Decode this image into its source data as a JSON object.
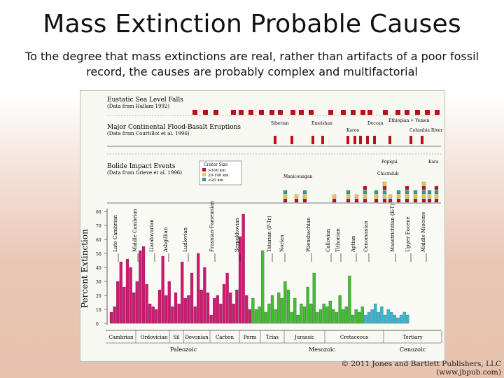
{
  "slide": {
    "title": "Mass Extinction Probable Causes",
    "subtitle": "To the degree that mass extinctions are real, rather than artifacts of a poor fossil record, the causes are probably complex and multifactorial"
  },
  "figure": {
    "panels": {
      "sea_level": {
        "title": "Eustatic Sea Level Falls",
        "source": "(Data from Hallam 1992)",
        "marker_color": "#b5121b"
      },
      "flood_basalt": {
        "title": "Major Continental Flood-Basalt Eruptions",
        "source": "(Data from Courtillot et al. 1996)",
        "labels": [
          "Siberian",
          "Emeishan",
          "Karoo",
          "Deccan",
          "Columbia River",
          "Ethiopian + Yemen"
        ],
        "marker_color": "#b5121b"
      },
      "bolide": {
        "title": "Bolide Impact Events",
        "source": "(Data from Grieve et al. 1996)",
        "crater_legend_title": "Crater Size",
        "crater_legend": [
          ">100 km",
          "20-100 km",
          "<20 km"
        ],
        "crater_colors": [
          "#b5121b",
          "#e6d23a",
          "#2a9c9c"
        ],
        "labels": [
          "Manicouagan",
          "Popigai",
          "Chicxulub",
          "Kara"
        ]
      }
    },
    "y_axis_label": "Percent Extinction",
    "y_ticks": [
      "0",
      "10",
      "20",
      "30",
      "40",
      "50",
      "60",
      "70",
      "80"
    ],
    "extinction_labels": [
      "Late Cambrian",
      "Middle Cambrian",
      "Ashgillian",
      "Llandovarian",
      "Ludlovian",
      "Frasnian-Famennian",
      "Serpukhovian",
      "Tatarian (P-Tr)",
      "Norian",
      "Pliensbachian",
      "Callovian",
      "Tithonian",
      "Aptian",
      "Cenomanian",
      "Maastrichtian (K-T)",
      "Upper Eocene",
      "Middle Miocene"
    ],
    "periods": [
      "Cambrian",
      "Ordovician",
      "Sil",
      "Devonian",
      "Carbon",
      "Perm",
      "Trias",
      "Jurassic",
      "Cretaceous",
      "Tertiary"
    ],
    "eras": [
      "Paleozoic",
      "Mesozoic",
      "Cenozoic"
    ],
    "era_colors": [
      "#d01873",
      "#3fbf2f",
      "#39b7d1"
    ]
  },
  "credit": "© 2011 Jones and Bartlett Publishers, LLC (www.jbpub.com)"
}
